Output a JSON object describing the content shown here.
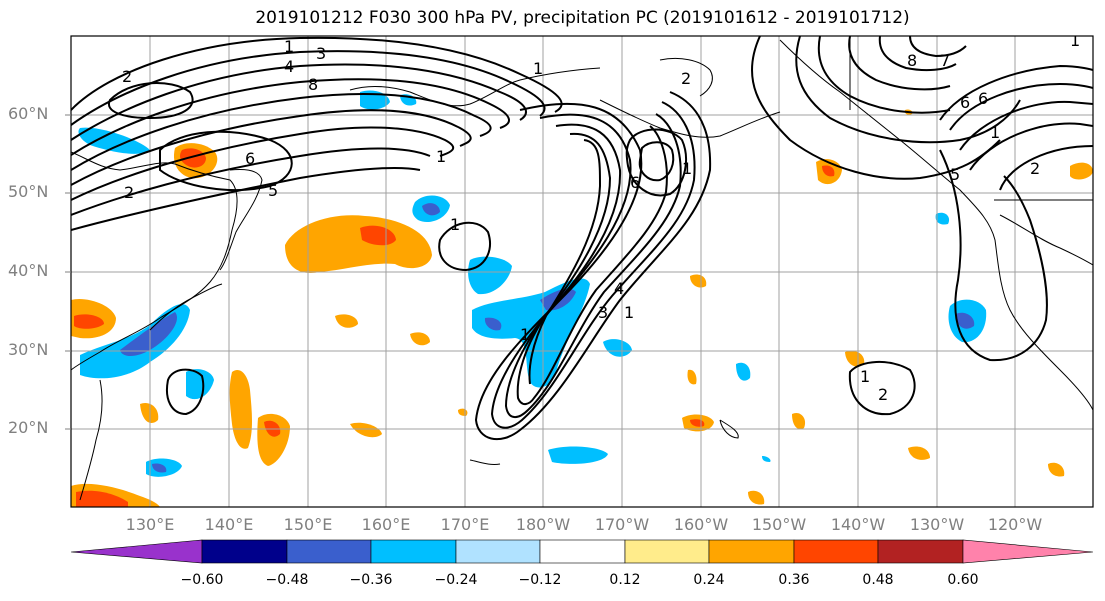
{
  "title": "2019101212 F030 300 hPa PV, precipitation PC (2019101612 - 2019101712)",
  "lat_labels": [
    "60°N",
    "50°N",
    "40°N",
    "30°N",
    "20°N"
  ],
  "lon_labels": [
    "130°E",
    "140°E",
    "150°E",
    "160°E",
    "170°E",
    "180°W",
    "170°W",
    "160°W",
    "150°W",
    "140°W",
    "130°W",
    "120°W"
  ],
  "colorbar": {
    "ticks": [
      "−0.60",
      "−0.48",
      "−0.36",
      "−0.24",
      "−0.12",
      "0.12",
      "0.24",
      "0.36",
      "0.48",
      "0.60"
    ],
    "colors": [
      "#9932cc",
      "#00008b",
      "#3a5fcd",
      "#00bfff",
      "#b0e2ff",
      "#ffffff",
      "#ffec8b",
      "#ffa500",
      "#ff4500",
      "#b22222",
      "#ff82ab"
    ]
  },
  "contour_labels": [
    "1",
    "3",
    "4",
    "8",
    "2",
    "6",
    "5",
    "1",
    "2",
    "6",
    "8",
    "7",
    "6",
    "1",
    "2",
    "1",
    "2",
    "1",
    "3",
    "4",
    "1",
    "1",
    "2",
    "1",
    "5",
    "6",
    "1",
    "1"
  ]
}
